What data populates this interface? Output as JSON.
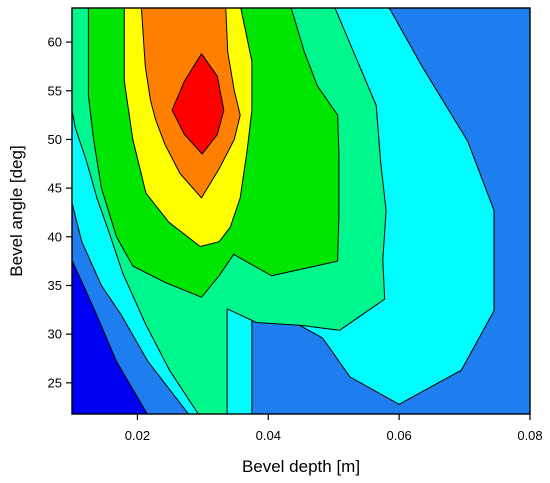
{
  "chart_data": {
    "type": "contour",
    "xlabel": "Bevel depth [m]",
    "ylabel": "Bevel angle [deg]",
    "xlim": [
      0.01,
      0.08
    ],
    "ylim": [
      21.8,
      63.5
    ],
    "x_ticks": [
      0.02,
      0.04,
      0.06,
      0.08
    ],
    "x_tick_labels": [
      "0.02",
      "0.04",
      "0.06",
      "0.08"
    ],
    "y_ticks": [
      25,
      30,
      35,
      40,
      45,
      50,
      55,
      60
    ],
    "y_tick_labels": [
      "25",
      "30",
      "35",
      "40",
      "45",
      "50",
      "55",
      "60"
    ],
    "colors": [
      "#1e7ef0",
      "#0000f5",
      "#00fdfd",
      "#00f78e",
      "#00e600",
      "#ffff00",
      "#ff8000",
      "#ff0000"
    ],
    "bands": [
      {
        "level": 0,
        "color": "#1e7ef0",
        "polygon": [
          [
            0.01,
            21.8
          ],
          [
            0.08,
            21.8
          ],
          [
            0.08,
            63.5
          ],
          [
            0.01,
            63.5
          ]
        ]
      },
      {
        "level": 1,
        "color": "#0000f5",
        "polygon": [
          [
            0.01,
            21.8
          ],
          [
            0.0215,
            21.8
          ],
          [
            0.0168,
            27.2
          ],
          [
            0.0135,
            32.4
          ],
          [
            0.01,
            37.6
          ]
        ]
      },
      {
        "level": 2,
        "color": "#00fdfd",
        "polygon": [
          [
            0.0278,
            21.8
          ],
          [
            0.0216,
            27.2
          ],
          [
            0.0175,
            32.0
          ],
          [
            0.0145,
            35.0
          ],
          [
            0.0115,
            39.5
          ],
          [
            0.01,
            43.5
          ],
          [
            0.01,
            63.5
          ],
          [
            0.0585,
            63.5
          ],
          [
            0.0635,
            57.5
          ],
          [
            0.0705,
            49.8
          ],
          [
            0.0745,
            42.7
          ],
          [
            0.0745,
            32.4
          ],
          [
            0.0695,
            26.3
          ],
          [
            0.06,
            22.8
          ],
          [
            0.0525,
            25.6
          ],
          [
            0.0483,
            29.6
          ],
          [
            0.0408,
            32.4
          ],
          [
            0.0393,
            33.6
          ],
          [
            0.0375,
            32.2
          ],
          [
            0.0375,
            21.8
          ]
        ]
      },
      {
        "level": 3,
        "color": "#00f78e",
        "polygon": [
          [
            0.0293,
            21.8
          ],
          [
            0.0249,
            26.3
          ],
          [
            0.0212,
            31.1
          ],
          [
            0.0178,
            36.2
          ],
          [
            0.0158,
            40.2
          ],
          [
            0.0138,
            44.0
          ],
          [
            0.0122,
            47.8
          ],
          [
            0.0105,
            51.2
          ],
          [
            0.01,
            53.0
          ],
          [
            0.01,
            63.5
          ],
          [
            0.0502,
            63.5
          ],
          [
            0.0565,
            53.5
          ],
          [
            0.0572,
            47.5
          ],
          [
            0.058,
            42.7
          ],
          [
            0.0575,
            37.6
          ],
          [
            0.0578,
            33.6
          ],
          [
            0.0509,
            30.4
          ],
          [
            0.045,
            30.9
          ],
          [
            0.0382,
            31.2
          ],
          [
            0.0337,
            32.6
          ],
          [
            0.0337,
            21.8
          ]
        ]
      },
      {
        "level": 4,
        "color": "#00e600",
        "polygon": [
          [
            0.0298,
            33.8
          ],
          [
            0.0243,
            35.3
          ],
          [
            0.0193,
            37.0
          ],
          [
            0.0168,
            40.0
          ],
          [
            0.0145,
            45.0
          ],
          [
            0.0133,
            50.0
          ],
          [
            0.0125,
            54.5
          ],
          [
            0.0125,
            63.5
          ],
          [
            0.0435,
            63.5
          ],
          [
            0.0455,
            59.0
          ],
          [
            0.0475,
            55.5
          ],
          [
            0.0506,
            52.5
          ],
          [
            0.0508,
            48.5
          ],
          [
            0.0508,
            44.7
          ],
          [
            0.0508,
            42.2
          ],
          [
            0.0506,
            37.5
          ],
          [
            0.0405,
            36.0
          ],
          [
            0.0365,
            37.5
          ],
          [
            0.0347,
            38.2
          ],
          [
            0.0325,
            36.0
          ]
        ]
      },
      {
        "level": 5,
        "color": "#ffff00",
        "polygon": [
          [
            0.0296,
            39.0
          ],
          [
            0.0248,
            41.5
          ],
          [
            0.0213,
            44.5
          ],
          [
            0.0193,
            50.0
          ],
          [
            0.018,
            56.0
          ],
          [
            0.018,
            63.5
          ],
          [
            0.0358,
            63.5
          ],
          [
            0.0375,
            58.0
          ],
          [
            0.0375,
            53.0
          ],
          [
            0.0368,
            49.0
          ],
          [
            0.0357,
            44.0
          ],
          [
            0.0342,
            41.0
          ],
          [
            0.0325,
            39.5
          ]
        ]
      },
      {
        "level": 6,
        "color": "#ff8000",
        "polygon": [
          [
            0.0298,
            44.0
          ],
          [
            0.0265,
            46.5
          ],
          [
            0.0242,
            49.5
          ],
          [
            0.0228,
            52.0
          ],
          [
            0.022,
            54.0
          ],
          [
            0.0212,
            57.5
          ],
          [
            0.0206,
            63.5
          ],
          [
            0.0335,
            63.5
          ],
          [
            0.0338,
            59.0
          ],
          [
            0.0348,
            55.0
          ],
          [
            0.0357,
            52.5
          ],
          [
            0.0348,
            50.0
          ],
          [
            0.0325,
            47.0
          ]
        ]
      },
      {
        "level": 7,
        "color": "#ff0000",
        "polygon": [
          [
            0.0299,
            48.5
          ],
          [
            0.0272,
            50.5
          ],
          [
            0.0253,
            53.0
          ],
          [
            0.0272,
            56.0
          ],
          [
            0.0298,
            58.8
          ],
          [
            0.0322,
            56.5
          ],
          [
            0.0332,
            53.0
          ],
          [
            0.0322,
            50.5
          ]
        ]
      }
    ]
  }
}
